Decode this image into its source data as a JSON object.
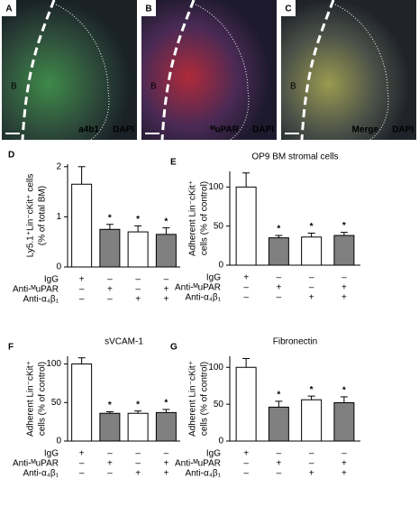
{
  "images": {
    "panels": [
      {
        "letter": "A",
        "region": "B",
        "stains": [
          "a4b1",
          "DAPI"
        ]
      },
      {
        "letter": "B",
        "region": "B",
        "stains": [
          "ᴹuPAR",
          "DAPI"
        ]
      },
      {
        "letter": "C",
        "region": "B",
        "stains": [
          "Merge",
          "DAPI"
        ]
      }
    ]
  },
  "chart_data": [
    {
      "type": "bar",
      "panel_label": "D",
      "ylabel": [
        "Ly5.1⁺Lin⁻cKit⁺ cells",
        "(% of total BM)"
      ],
      "values": [
        1.65,
        0.75,
        0.7,
        0.65
      ],
      "errors": [
        0.35,
        0.1,
        0.12,
        0.13
      ],
      "colors": [
        "#ffffff",
        "#808080",
        "#ffffff",
        "#808080"
      ],
      "significance": [
        null,
        "*",
        "*",
        "*"
      ],
      "ylim": [
        0,
        2.05
      ],
      "yticks": [
        0,
        1,
        2
      ],
      "treatments": [
        {
          "name": "IgG",
          "signs": [
            "+",
            "–",
            "–",
            "–"
          ]
        },
        {
          "name": "Anti-ᴹuPAR",
          "signs": [
            "–",
            "+",
            "–",
            "+"
          ]
        },
        {
          "name": "Anti-α₄β₁",
          "signs": [
            "–",
            "–",
            "+",
            "+"
          ]
        }
      ]
    },
    {
      "type": "bar",
      "panel_label": "E",
      "title": "OP9 BM stromal cells",
      "ylabel": [
        "Adherent Lin⁻cKit⁺",
        "cells (% of control)"
      ],
      "values": [
        100,
        35,
        36,
        38
      ],
      "errors": [
        18,
        3,
        5,
        4
      ],
      "colors": [
        "#ffffff",
        "#808080",
        "#ffffff",
        "#808080"
      ],
      "significance": [
        null,
        "*",
        "*",
        "*"
      ],
      "ylim": [
        0,
        120
      ],
      "yticks": [
        0,
        50,
        100
      ],
      "treatments": [
        {
          "name": "IgG",
          "signs": [
            "+",
            "–",
            "–",
            "–"
          ]
        },
        {
          "name": "Anti-ᴹuPAR",
          "signs": [
            "–",
            "+",
            "–",
            "+"
          ]
        },
        {
          "name": "Anti-α₄β₁",
          "signs": [
            "–",
            "–",
            "+",
            "+"
          ]
        }
      ]
    },
    {
      "type": "bar",
      "panel_label": "F",
      "title": "sVCAM-1",
      "ylabel": [
        "Adherent Lin⁻cKit⁺",
        "cells (% of control)"
      ],
      "values": [
        100,
        36,
        36,
        37
      ],
      "errors": [
        8,
        2,
        3,
        4
      ],
      "colors": [
        "#ffffff",
        "#808080",
        "#ffffff",
        "#808080"
      ],
      "significance": [
        null,
        "*",
        "*",
        "*"
      ],
      "ylim": [
        0,
        110
      ],
      "yticks": [
        0,
        50,
        100
      ],
      "treatments": [
        {
          "name": "IgG",
          "signs": [
            "+",
            "–",
            "–",
            "–"
          ]
        },
        {
          "name": "Anti-ᴹuPAR",
          "signs": [
            "–",
            "+",
            "–",
            "+"
          ]
        },
        {
          "name": "Anti-α₄β₁",
          "signs": [
            "–",
            "–",
            "+",
            "+"
          ]
        }
      ]
    },
    {
      "type": "bar",
      "panel_label": "G",
      "title": "Fibronectin",
      "ylabel": [
        "Adherent Lin⁻cKit⁺",
        "cells (% of control)"
      ],
      "values": [
        100,
        46,
        56,
        52
      ],
      "errors": [
        12,
        8,
        5,
        8
      ],
      "colors": [
        "#ffffff",
        "#808080",
        "#ffffff",
        "#808080"
      ],
      "significance": [
        null,
        "*",
        "*",
        "*"
      ],
      "ylim": [
        0,
        115
      ],
      "yticks": [
        0,
        50,
        100
      ],
      "treatments": [
        {
          "name": "IgG",
          "signs": [
            "+",
            "–",
            "–",
            "–"
          ]
        },
        {
          "name": "Anti-ᴹuPAR",
          "signs": [
            "–",
            "+",
            "–",
            "+"
          ]
        },
        {
          "name": "Anti-α₄β₁",
          "signs": [
            "–",
            "–",
            "+",
            "+"
          ]
        }
      ]
    }
  ]
}
